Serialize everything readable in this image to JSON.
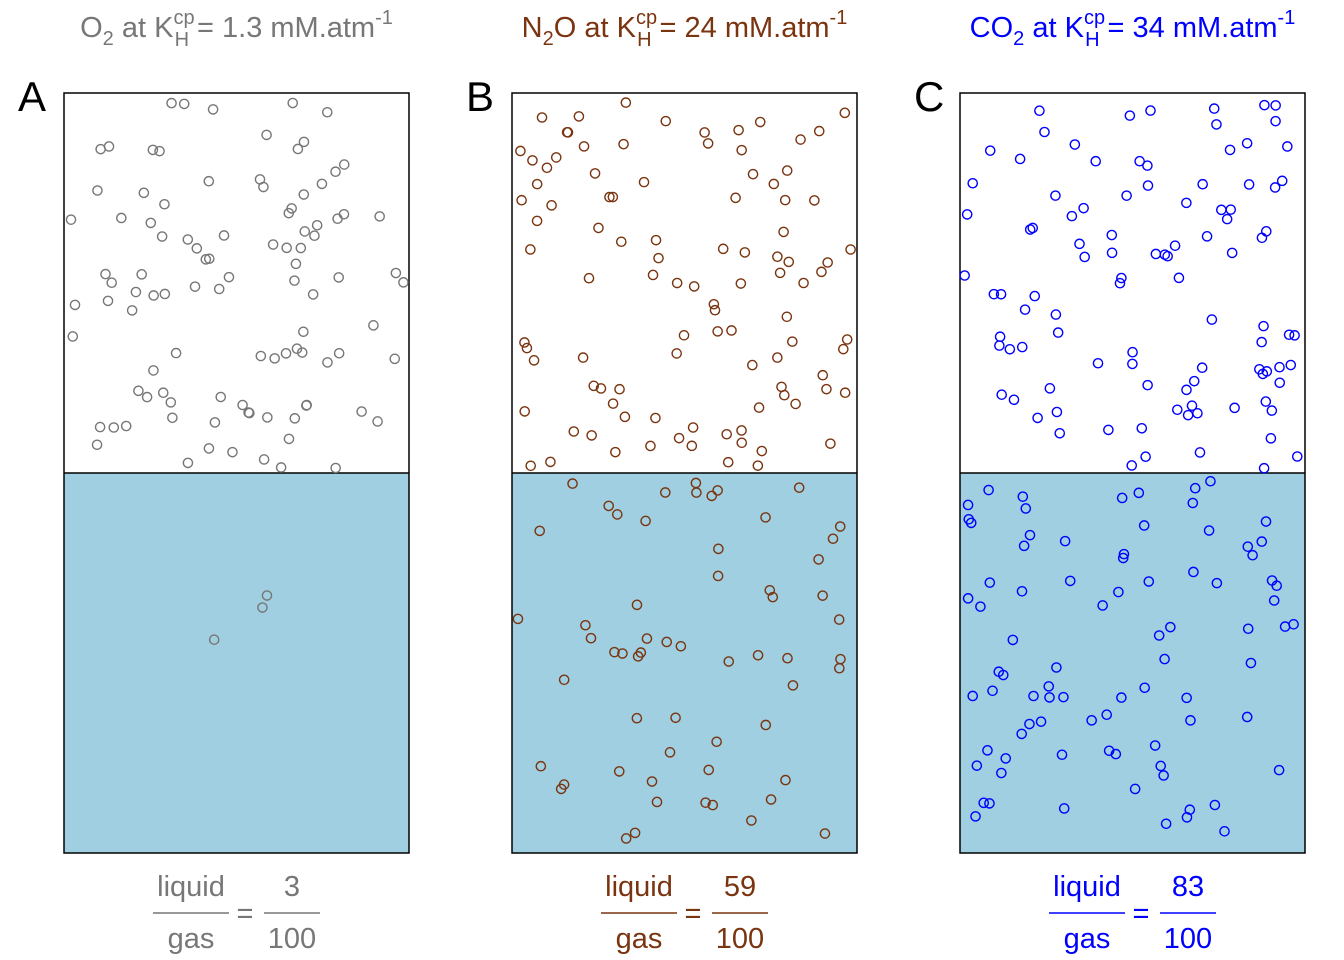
{
  "panels": [
    {
      "letter": "A",
      "gas": "O",
      "gas_sub": "2",
      "gas_suffix": "",
      "k_label": "K",
      "k_sup": "cp",
      "k_sub": "H",
      "k_value": "= 1.3 mM.atm",
      "unit_sup": "-1",
      "color": "#777777",
      "liquid_label": "liquid",
      "gas_label": "gas",
      "liquid_count": "3",
      "gas_count": "100"
    },
    {
      "letter": "B",
      "gas": "N",
      "gas_sub": "2",
      "gas_suffix": "O",
      "k_label": "K",
      "k_sup": "cp",
      "k_sub": "H",
      "k_value": "= 24 mM.atm",
      "unit_sup": "-1",
      "color": "#7a3410",
      "liquid_label": "liquid",
      "gas_label": "gas",
      "liquid_count": "59",
      "gas_count": "100"
    },
    {
      "letter": "C",
      "gas": "CO",
      "gas_sub": "2",
      "gas_suffix": "",
      "k_label": "K",
      "k_sup": "cp",
      "k_sub": "H",
      "k_value": "= 34 mM.atm",
      "unit_sup": "-1",
      "color": "#0000ff",
      "liquid_label": "liquid",
      "gas_label": "gas",
      "liquid_count": "83",
      "gas_count": "100"
    }
  ],
  "at_word": "at",
  "liquid_color": "#9fcfe0"
}
